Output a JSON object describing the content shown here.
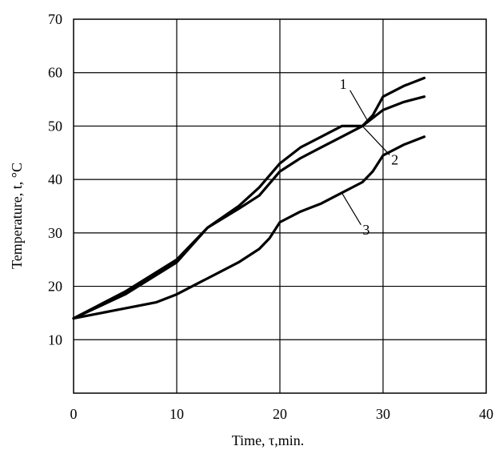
{
  "chart_data": {
    "type": "line",
    "title": "",
    "xlabel": "Time, τ,min.",
    "ylabel": "Temperature, t, °C",
    "xlim": [
      0,
      40
    ],
    "ylim": [
      0,
      70
    ],
    "x_ticks": [
      0,
      10,
      20,
      30,
      40
    ],
    "y_ticks": [
      10,
      20,
      30,
      40,
      50,
      60,
      70
    ],
    "grid": true,
    "legend": "none",
    "series": [
      {
        "name": "1",
        "color": "#000000",
        "x": [
          0,
          5,
          10,
          13,
          16,
          18,
          20,
          22,
          24,
          26,
          28,
          29,
          30,
          32,
          34
        ],
        "y": [
          14,
          18.5,
          24.5,
          31,
          35,
          38.5,
          43,
          46,
          48,
          50,
          50,
          52,
          55.5,
          57.5,
          59
        ]
      },
      {
        "name": "2",
        "color": "#000000",
        "x": [
          0,
          5,
          10,
          13,
          16,
          18,
          20,
          22,
          24,
          26,
          28,
          30,
          32,
          34
        ],
        "y": [
          14,
          19,
          25,
          31,
          34.5,
          37,
          41.5,
          44,
          46,
          48,
          50,
          53,
          54.5,
          55.5
        ]
      },
      {
        "name": "3",
        "color": "#000000",
        "x": [
          0,
          4,
          8,
          10,
          12,
          14,
          16,
          18,
          19,
          20,
          22,
          24,
          26,
          28,
          29,
          30,
          32,
          34
        ],
        "y": [
          14,
          15.5,
          17,
          18.5,
          20.5,
          22.5,
          24.5,
          27,
          29,
          32,
          34,
          35.5,
          37.5,
          39.5,
          41.5,
          44.5,
          46.5,
          48
        ]
      }
    ],
    "annotations": [
      {
        "text": "1",
        "series": "1",
        "at_x": 28.5
      },
      {
        "text": "2",
        "series": "2",
        "at_x": 28.0
      },
      {
        "text": "3",
        "series": "3",
        "at_x": 26.0
      }
    ]
  }
}
